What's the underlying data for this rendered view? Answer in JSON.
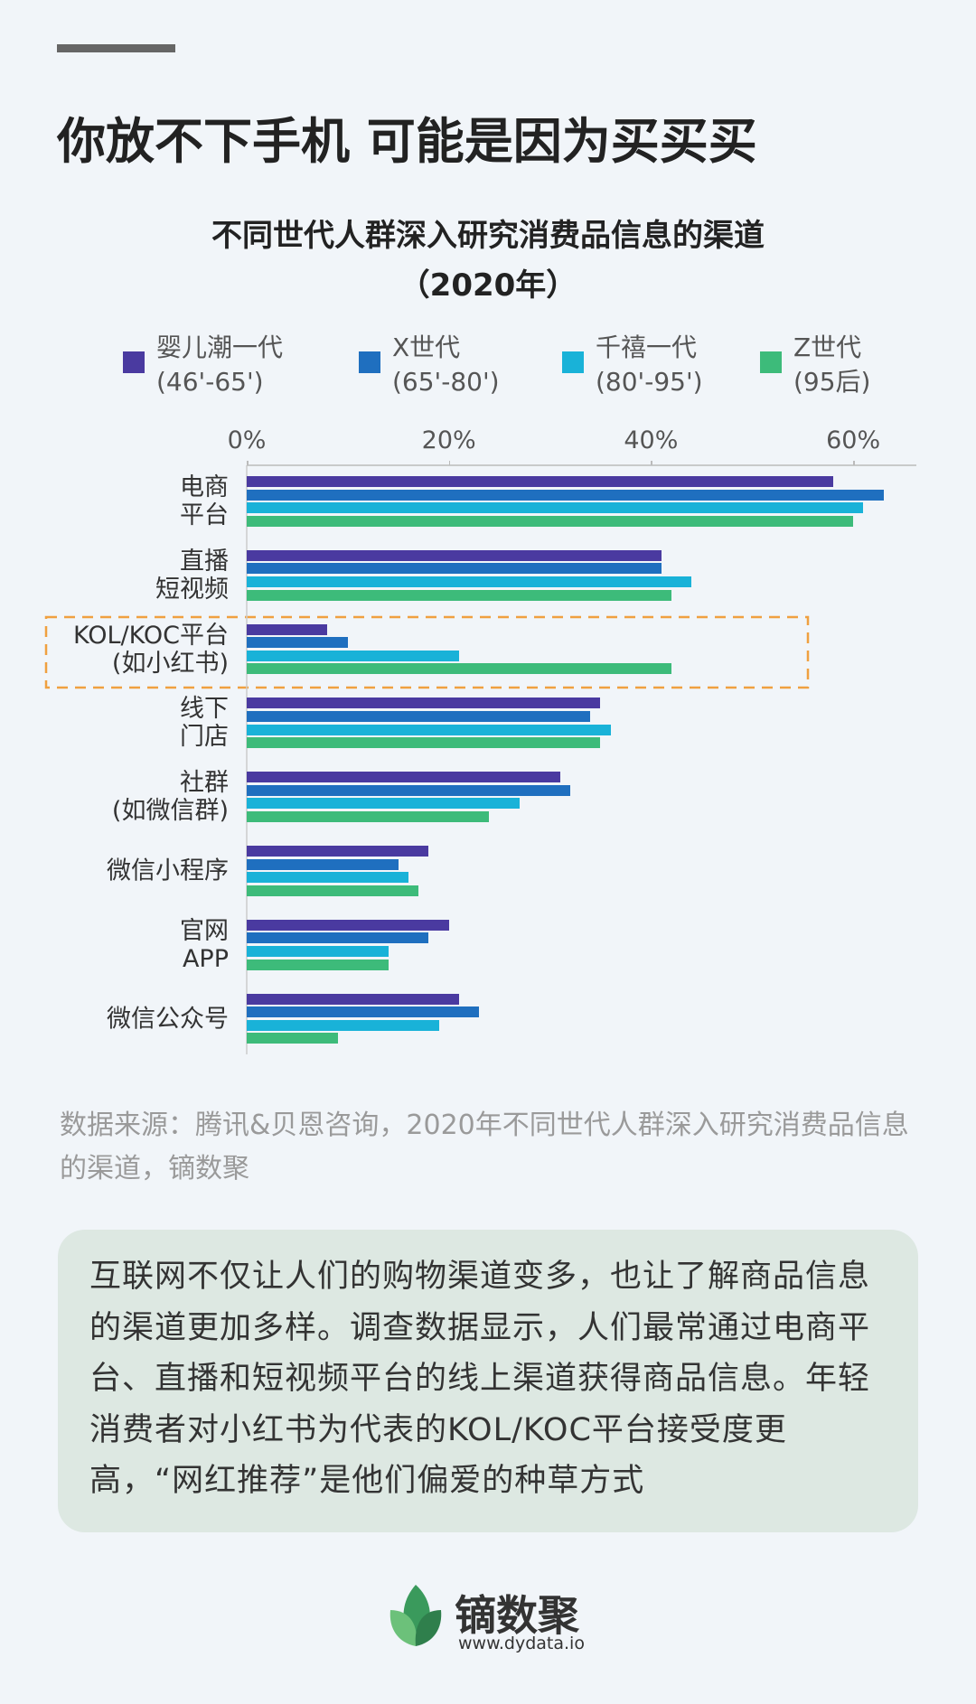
{
  "header": {
    "title": "你放不下手机 可能是因为买买买"
  },
  "chart_data": {
    "type": "bar",
    "orientation": "horizontal",
    "title": "不同世代人群深入研究消费品信息的渠道",
    "subtitle": "（2020年）",
    "categories": [
      "电商\n平台",
      "直播\n短视频",
      "KOL/KOC平台\n(如小红书)",
      "线下\n门店",
      "社群\n(如微信群)",
      "微信小程序",
      "官网\nAPP",
      "微信公众号"
    ],
    "series": [
      {
        "name": "婴儿潮一代\n(46'-65')",
        "color": "#4a3aa0",
        "values": [
          58,
          41,
          8,
          35,
          31,
          18,
          20,
          21
        ]
      },
      {
        "name": "X世代\n(65'-80')",
        "color": "#1f6fbf",
        "values": [
          63,
          41,
          10,
          34,
          32,
          15,
          18,
          23
        ]
      },
      {
        "name": "千禧一代\n(80'-95')",
        "color": "#19b2d8",
        "values": [
          61,
          44,
          21,
          36,
          27,
          16,
          14,
          19
        ]
      },
      {
        "name": "Z世代\n(95后)",
        "color": "#3dbb7a",
        "values": [
          60,
          42,
          42,
          35,
          24,
          17,
          14,
          9
        ]
      }
    ],
    "xlim": [
      0,
      66
    ],
    "xticks": [
      {
        "value": 0,
        "label": "0%"
      },
      {
        "value": 20,
        "label": "20%"
      },
      {
        "value": 40,
        "label": "40%"
      },
      {
        "value": 60,
        "label": "60%"
      }
    ],
    "legend": "top"
  },
  "source": "数据来源：腾讯&贝恩咨询，2020年不同世代人群深入研究消费品信息的渠道，镝数聚",
  "summary": "互联网不仅让人们的购物渠道变多，也让了解商品信息的渠道更加多样。调查数据显示，人们最常通过电商平台、直播和短视频平台的线上渠道获得商品信息。年轻消费者对小红书为代表的KOL/KOC平台接受度更高，“网红推荐”是他们偏爱的种草方式",
  "footer": {
    "brand": "镝数聚",
    "url": "www.dydata.io"
  }
}
